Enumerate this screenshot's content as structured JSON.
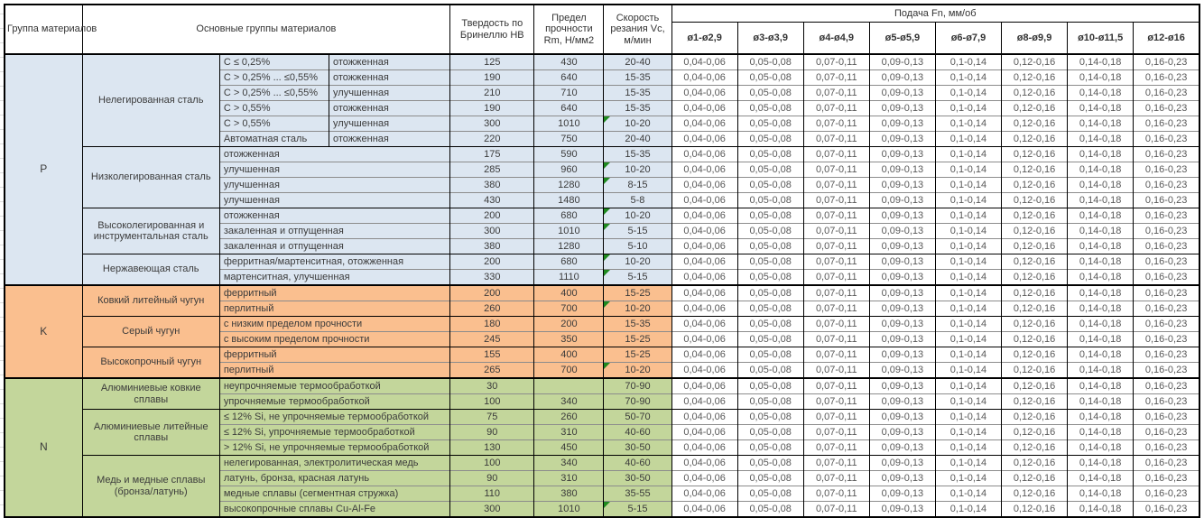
{
  "header": {
    "col_group": "Группа материалов",
    "col_materials": "Основные группы материалов",
    "col_hardness": "Твердость по Бринеллю НВ",
    "col_strength": "Предел прочности Rm, Н/мм2",
    "col_speed": "Скорость резания Vc, м/мин",
    "feed_title": "Подача Fn, мм/об",
    "feed_cols": [
      "ø1-ø2,9",
      "ø3-ø3,9",
      "ø4-ø4,9",
      "ø5-ø5,9",
      "ø6-ø7,9",
      "ø8-ø9,9",
      "ø10-ø11,5",
      "ø12-ø16"
    ]
  },
  "feed_values": [
    "0,04-0,06",
    "0,05-0,08",
    "0,07-0,11",
    "0,09-0,13",
    "0,1-0,14",
    "0,12-0,16",
    "0,14-0,18",
    "0,16-0,23"
  ],
  "colors": {
    "P": "#DCE6F1",
    "K": "#FABF8F",
    "N": "#C3D69B",
    "note_triangle": "#1F8A1F"
  },
  "groups": [
    {
      "id": "P",
      "families": [
        {
          "name": "Нелегированная сталь",
          "rows": [
            {
              "spec": "C ≤ 0,25%",
              "state": "отожженная",
              "hb": "125",
              "rm": "430",
              "vc": "20-40",
              "note": false
            },
            {
              "spec": "C > 0,25% ... ≤0,55%",
              "state": "отожженная",
              "hb": "190",
              "rm": "640",
              "vc": "15-35",
              "note": false
            },
            {
              "spec": "C > 0,25% ... ≤0,55%",
              "state": "улучшенная",
              "hb": "210",
              "rm": "710",
              "vc": "15-35",
              "note": false
            },
            {
              "spec": "C > 0,55%",
              "state": "отожженная",
              "hb": "190",
              "rm": "640",
              "vc": "15-35",
              "note": false
            },
            {
              "spec": "C > 0,55%",
              "state": "улучшенная",
              "hb": "300",
              "rm": "1010",
              "vc": "10-20",
              "note": true
            },
            {
              "spec": "Автоматная сталь",
              "state": "отожженная",
              "hb": "220",
              "rm": "750",
              "vc": "20-40",
              "note": false
            }
          ]
        },
        {
          "name": "Низколегированная сталь",
          "rows": [
            {
              "desc": "отожженная",
              "hb": "175",
              "rm": "590",
              "vc": "15-35",
              "note": false
            },
            {
              "desc": "улучшенная",
              "hb": "285",
              "rm": "960",
              "vc": "10-20",
              "note": true
            },
            {
              "desc": "улучшенная",
              "hb": "380",
              "rm": "1280",
              "vc": "8-15",
              "note": true
            },
            {
              "desc": "улучшенная",
              "hb": "430",
              "rm": "1480",
              "vc": "5-8",
              "note": false
            }
          ]
        },
        {
          "name": "Высоколегированная и инструментальная сталь",
          "rows": [
            {
              "desc": "отожженная",
              "hb": "200",
              "rm": "680",
              "vc": "10-20",
              "note": true
            },
            {
              "desc": "закаленная и отпущенная",
              "hb": "300",
              "rm": "1010",
              "vc": "5-15",
              "note": true
            },
            {
              "desc": "закаленная и отпущенная",
              "hb": "380",
              "rm": "1280",
              "vc": "5-10",
              "note": false
            }
          ]
        },
        {
          "name": "Нержавеющая сталь",
          "rows": [
            {
              "desc": "ферритная/мартенситная, отожженная",
              "hb": "200",
              "rm": "680",
              "vc": "10-20",
              "note": true
            },
            {
              "desc": "мартенситная, улучшенная",
              "hb": "330",
              "rm": "1110",
              "vc": "5-15",
              "note": true
            }
          ]
        }
      ]
    },
    {
      "id": "K",
      "families": [
        {
          "name": "Ковкий литейный чугун",
          "rows": [
            {
              "desc": "ферритный",
              "hb": "200",
              "rm": "400",
              "vc": "15-25",
              "note": false
            },
            {
              "desc": "перлитный",
              "hb": "260",
              "rm": "700",
              "vc": "10-20",
              "note": true
            }
          ]
        },
        {
          "name": "Серый чугун",
          "rows": [
            {
              "desc": "с низким пределом прочности",
              "hb": "180",
              "rm": "200",
              "vc": "15-35",
              "note": false
            },
            {
              "desc": "с высоким пределом прочности",
              "hb": "245",
              "rm": "350",
              "vc": "15-25",
              "note": false
            }
          ]
        },
        {
          "name": "Высокопрочный чугун",
          "rows": [
            {
              "desc": "ферритный",
              "hb": "155",
              "rm": "400",
              "vc": "15-25",
              "note": false
            },
            {
              "desc": "перлитный",
              "hb": "265",
              "rm": "700",
              "vc": "10-20",
              "note": true
            }
          ]
        }
      ]
    },
    {
      "id": "N",
      "families": [
        {
          "name": "Алюминиевые ковкие сплавы",
          "rows": [
            {
              "desc": "неупрочняемые термообработкой",
              "hb": "30",
              "rm": "",
              "vc": "70-90",
              "note": false
            },
            {
              "desc": "упрочняемые термообработкой",
              "hb": "100",
              "rm": "340",
              "vc": "70-90",
              "note": false
            }
          ]
        },
        {
          "name": "Алюминиевые литейные сплавы",
          "rows": [
            {
              "desc": "≤ 12% Si, не упрочняемые термообработкой",
              "hb": "75",
              "rm": "260",
              "vc": "50-70",
              "note": false
            },
            {
              "desc": "≤ 12% Si, упрочняемые термообработкой",
              "hb": "90",
              "rm": "310",
              "vc": "40-60",
              "note": false
            },
            {
              "desc": "> 12% Si, не упрочняемые термообработкой",
              "hb": "130",
              "rm": "450",
              "vc": "30-50",
              "note": false
            }
          ]
        },
        {
          "name": "Медь и медные сплавы (бронза/латунь)",
          "rows": [
            {
              "desc": "нелегированная, электролитическая медь",
              "hb": "100",
              "rm": "340",
              "vc": "40-60",
              "note": false
            },
            {
              "desc": "латунь, бронза, красная латунь",
              "hb": "90",
              "rm": "310",
              "vc": "30-50",
              "note": false
            },
            {
              "desc": "медные сплавы (сегментная стружка)",
              "hb": "110",
              "rm": "380",
              "vc": "35-55",
              "note": false
            },
            {
              "desc": "высокопрочные сплавы Cu-Al-Fe",
              "hb": "300",
              "rm": "1010",
              "vc": "5-15",
              "note": true
            }
          ]
        }
      ]
    }
  ]
}
